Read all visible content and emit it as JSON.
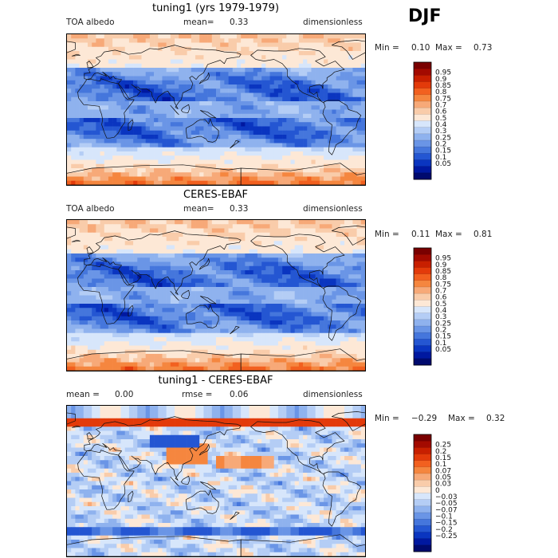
{
  "season": "DJF",
  "panels": [
    {
      "title": "tuning1 (yrs 1979-1979)",
      "left": "TOA albedo",
      "mean_label": "mean=",
      "mean_value": "0.33",
      "right": "dimensionless",
      "min_label": "Min =",
      "min_value": "0.10",
      "max_label": "Max =",
      "max_value": "0.73",
      "colorbar_ticks": [
        "0.95",
        "0.9",
        "0.85",
        "0.8",
        "0.75",
        "0.7",
        "0.6",
        "0.5",
        "0.4",
        "0.3",
        "0.25",
        "0.2",
        "0.15",
        "0.1",
        "0.05"
      ],
      "colorbar_colors": [
        "#7a0000",
        "#a30a00",
        "#c81f00",
        "#e33a0a",
        "#f2601f",
        "#f5863f",
        "#f7a978",
        "#f9ccaa",
        "#fde8d6",
        "#d7e6fb",
        "#b4cdf5",
        "#8fb2ee",
        "#6a95e6",
        "#4576dc",
        "#2456d2",
        "#0a35c0",
        "#0018a0",
        "#000a6e"
      ]
    },
    {
      "title": "CERES-EBAF",
      "left": "TOA albedo",
      "mean_label": "mean=",
      "mean_value": "0.33",
      "right": "dimensionless",
      "min_label": "Min =",
      "min_value": "0.11",
      "max_label": "Max =",
      "max_value": "0.81",
      "colorbar_ticks": [
        "0.95",
        "0.9",
        "0.85",
        "0.8",
        "0.75",
        "0.7",
        "0.6",
        "0.5",
        "0.4",
        "0.3",
        "0.25",
        "0.2",
        "0.15",
        "0.1",
        "0.05"
      ],
      "colorbar_colors": [
        "#7a0000",
        "#a30a00",
        "#c81f00",
        "#e33a0a",
        "#f2601f",
        "#f5863f",
        "#f7a978",
        "#f9ccaa",
        "#fde8d6",
        "#d7e6fb",
        "#b4cdf5",
        "#8fb2ee",
        "#6a95e6",
        "#4576dc",
        "#2456d2",
        "#0a35c0",
        "#0018a0",
        "#000a6e"
      ]
    },
    {
      "title": "tuning1 - CERES-EBAF",
      "left_label": "mean =",
      "left_value": "0.00",
      "mid_label": "rmse =",
      "mid_value": "0.06",
      "right": "dimensionless",
      "min_label": "Min =",
      "min_value": "−0.29",
      "max_label": "Max =",
      "max_value": "0.32",
      "colorbar_ticks": [
        "0.25",
        "0.2",
        "0.15",
        "0.1",
        "0.07",
        "0.05",
        "0.03",
        "0",
        "−0.03",
        "−0.05",
        "−0.07",
        "−0.1",
        "−0.15",
        "−0.2",
        "−0.25"
      ],
      "colorbar_colors": [
        "#7a0000",
        "#a30a00",
        "#c81f00",
        "#e33a0a",
        "#f2601f",
        "#f5863f",
        "#f7a978",
        "#f9ccaa",
        "#fde8d6",
        "#d7e6fb",
        "#b4cdf5",
        "#8fb2ee",
        "#6a95e6",
        "#4576dc",
        "#2456d2",
        "#0a35c0",
        "#0018a0",
        "#000a6e"
      ]
    }
  ],
  "chart_data": {
    "type": "heatmap",
    "title": "DJF",
    "panels": [
      {
        "title": "tuning1 (yrs 1979-1979)",
        "variable": "TOA albedo",
        "units": "dimensionless",
        "mean": 0.33,
        "min": 0.1,
        "max": 0.73,
        "levels": [
          0.05,
          0.1,
          0.15,
          0.2,
          0.25,
          0.3,
          0.4,
          0.5,
          0.6,
          0.7,
          0.75,
          0.8,
          0.85,
          0.9,
          0.95
        ]
      },
      {
        "title": "CERES-EBAF",
        "variable": "TOA albedo",
        "units": "dimensionless",
        "mean": 0.33,
        "min": 0.11,
        "max": 0.81,
        "levels": [
          0.05,
          0.1,
          0.15,
          0.2,
          0.25,
          0.3,
          0.4,
          0.5,
          0.6,
          0.7,
          0.75,
          0.8,
          0.85,
          0.9,
          0.95
        ]
      },
      {
        "title": "tuning1 - CERES-EBAF",
        "units": "dimensionless",
        "mean": 0.0,
        "rmse": 0.06,
        "min": -0.29,
        "max": 0.32,
        "levels": [
          -0.25,
          -0.2,
          -0.15,
          -0.1,
          -0.07,
          -0.05,
          -0.03,
          0,
          0.03,
          0.05,
          0.07,
          0.1,
          0.15,
          0.2,
          0.25
        ]
      }
    ]
  }
}
